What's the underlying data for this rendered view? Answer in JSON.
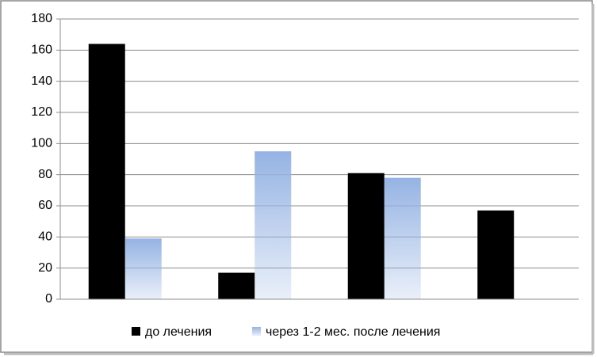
{
  "chart_data": {
    "type": "bar",
    "categories": [
      null,
      null,
      null,
      null
    ],
    "series": [
      {
        "name": "до лечения",
        "color": "#000000",
        "values": [
          164,
          17,
          81,
          57
        ]
      },
      {
        "name": "через 1-2 мес. после лечения",
        "color": "#95b3e3",
        "values": [
          39,
          95,
          78,
          null
        ]
      }
    ],
    "ylim": [
      0,
      180
    ],
    "yticks": [
      0,
      20,
      40,
      60,
      80,
      100,
      120,
      140,
      160,
      180
    ],
    "grid": true,
    "legend": "bottom"
  }
}
